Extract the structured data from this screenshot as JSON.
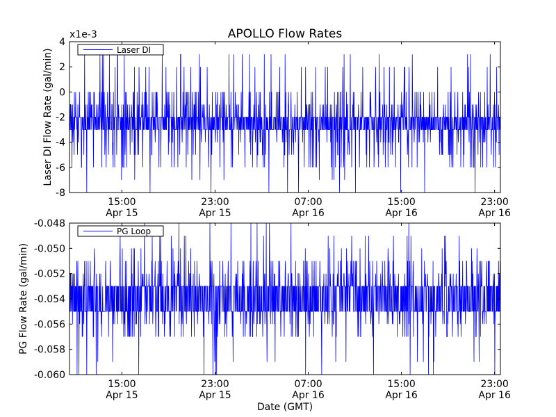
{
  "title": "APOLLO Flow Rates",
  "xlabel": "Date (GMT)",
  "chart_data": [
    {
      "type": "line",
      "ylabel": "Laser DI Flow Rate (gal/min)",
      "offset_label": "x1e-3",
      "ylim": [
        -8,
        4
      ],
      "yticks": [
        4,
        2,
        0,
        -2,
        -4,
        -6,
        -8
      ],
      "ytick_labels": [
        "4",
        "2",
        "0",
        "-2",
        "-4",
        "-6",
        "-8"
      ],
      "baseline": -2.5,
      "levels_up": [
        -2,
        -1,
        0
      ],
      "levels_down": [
        -3,
        -4,
        -5,
        -6
      ],
      "spikes_up": [
        2,
        3.0
      ],
      "spikes_down": [
        -7,
        -8
      ],
      "legend": "Laser DI",
      "legend_position": "upper-left",
      "color": "#0000ff"
    },
    {
      "type": "line",
      "ylabel": "PG Flow Rate (gal/min)",
      "ylim": [
        -0.06,
        -0.048
      ],
      "yticks": [
        -0.048,
        -0.05,
        -0.052,
        -0.054,
        -0.056,
        -0.058,
        -0.06
      ],
      "ytick_labels": [
        "-0.048",
        "-0.050",
        "-0.052",
        "-0.054",
        "-0.056",
        "-0.058",
        "-0.060"
      ],
      "baseline": -0.054,
      "levels_up": [
        -0.053,
        -0.052,
        -0.051
      ],
      "levels_down": [
        -0.055,
        -0.056,
        -0.057
      ],
      "spikes_up": [
        -0.05,
        -0.049,
        -0.048
      ],
      "spikes_down": [
        -0.059,
        -0.06
      ],
      "legend": "PG Loop",
      "legend_position": "upper-left",
      "color": "#0000ff"
    }
  ],
  "x_range_hours": [
    10.5,
    47.5
  ],
  "xticks": [
    {
      "time": "15:00",
      "date": "Apr 15",
      "hour": 15
    },
    {
      "time": "23:00",
      "date": "Apr 15",
      "hour": 23
    },
    {
      "time": "07:00",
      "date": "Apr 16",
      "hour": 31
    },
    {
      "time": "15:00",
      "date": "Apr 16",
      "hour": 39
    },
    {
      "time": "23:00",
      "date": "Apr 16",
      "hour": 47
    }
  ]
}
